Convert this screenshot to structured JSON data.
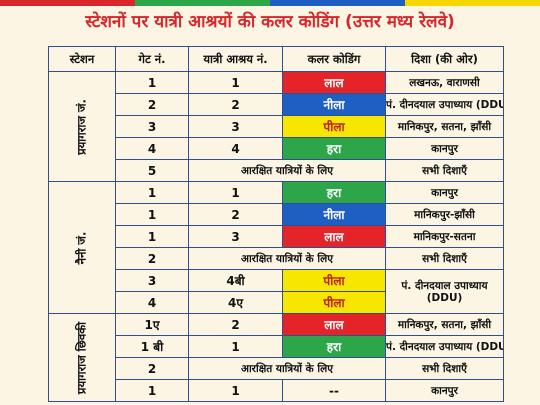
{
  "header": {
    "title": "स्टेशनों पर यात्री आश्रयों की कलर कोडिंग (उत्तर मध्य रेलवे)"
  },
  "table": {
    "columns": [
      "स्टेशन",
      "गेट नं.",
      "यात्री आश्रय नं.",
      "कलर कोडिंग",
      "दिशा (की ओर)"
    ],
    "groups": [
      {
        "station": "प्रयागराज जं.",
        "rows": [
          {
            "gate": "1",
            "shelter": "1",
            "color": {
              "label": "लाल",
              "fill": "#e5242a",
              "text": "#ffffff"
            },
            "direction": "लखनऊ, वाराणसी"
          },
          {
            "gate": "2",
            "shelter": "2",
            "color": {
              "label": "नीला",
              "fill": "#1f5fc4",
              "text": "#ffffff"
            },
            "direction": "पं. दीनदयाल उपाध्याय (DDU)"
          },
          {
            "gate": "3",
            "shelter": "3",
            "color": {
              "label": "पीला",
              "fill": "#f6e600",
              "text": "#c0201e"
            },
            "direction": "मानिकपुर, सतना, झाँसी"
          },
          {
            "gate": "4",
            "shelter": "4",
            "color": {
              "label": "हरा",
              "fill": "#2da64a",
              "text": "#ffffff"
            },
            "direction": "कानपुर"
          },
          {
            "gate": "5",
            "note": "आरक्षित यात्रियों के लिए",
            "direction": "सभी दिशाएँ"
          }
        ]
      },
      {
        "station": "नैनी जं.",
        "rows": [
          {
            "gate": "1",
            "shelter": "1",
            "color": {
              "label": "हरा",
              "fill": "#2da64a",
              "text": "#ffffff"
            },
            "direction": "कानपुर"
          },
          {
            "gate": "1",
            "shelter": "2",
            "color": {
              "label": "नीला",
              "fill": "#1f5fc4",
              "text": "#ffffff"
            },
            "direction": "मानिकपुर-झाँसी"
          },
          {
            "gate": "1",
            "shelter": "3",
            "color": {
              "label": "लाल",
              "fill": "#e5242a",
              "text": "#ffffff"
            },
            "direction": "मानिकपुर-सतना"
          },
          {
            "gate": "2",
            "note": "आरक्षित यात्रियों के लिए",
            "direction": "सभी दिशाएँ"
          },
          {
            "gate": "3",
            "shelter": "4बी",
            "color": {
              "label": "पीला",
              "fill": "#f6e600",
              "text": "#c0201e"
            },
            "direction": "पं. दीनदयाल उपाध्याय (DDU)",
            "direction_rows": 2
          },
          {
            "gate": "4",
            "shelter": "4ए",
            "color": {
              "label": "पीला",
              "fill": "#f6e600",
              "text": "#c0201e"
            }
          }
        ]
      },
      {
        "station": "प्रयागराज छिवकी",
        "rows": [
          {
            "gate": "1ए",
            "shelter": "2",
            "color": {
              "label": "लाल",
              "fill": "#e5242a",
              "text": "#ffffff"
            },
            "direction": "मानिकपुर, सतना, झाँसी"
          },
          {
            "gate": "1 बी",
            "shelter": "1",
            "color": {
              "label": "हरा",
              "fill": "#2da64a",
              "text": "#ffffff"
            },
            "direction": "पं. दीनदयाल उपाध्याय (DDU)"
          },
          {
            "gate": "2",
            "note": "आरक्षित यात्रियों के लिए",
            "direction": "सभी दिशाएँ"
          },
          {
            "gate": "1",
            "shelter": "1",
            "color": {
              "label": "--",
              "fill": "#fcf5e4",
              "text": "#111111"
            },
            "direction": "कानपुर"
          }
        ]
      }
    ]
  }
}
